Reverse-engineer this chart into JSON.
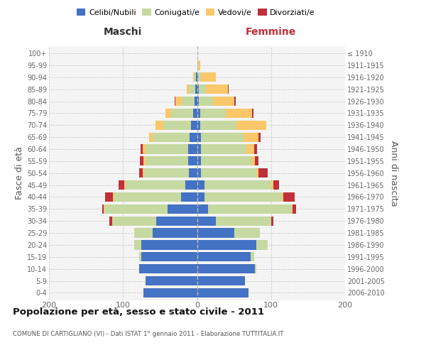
{
  "age_groups": [
    "0-4",
    "5-9",
    "10-14",
    "15-19",
    "20-24",
    "25-29",
    "30-34",
    "35-39",
    "40-44",
    "45-49",
    "50-54",
    "55-59",
    "60-64",
    "65-69",
    "70-74",
    "75-79",
    "80-84",
    "85-89",
    "90-94",
    "95-99",
    "100+"
  ],
  "birth_years": [
    "2006-2010",
    "2001-2005",
    "1996-2000",
    "1991-1995",
    "1986-1990",
    "1981-1985",
    "1976-1980",
    "1971-1975",
    "1966-1970",
    "1961-1965",
    "1956-1960",
    "1951-1955",
    "1946-1950",
    "1941-1945",
    "1936-1940",
    "1931-1935",
    "1926-1930",
    "1921-1925",
    "1916-1920",
    "1911-1915",
    "≤ 1910"
  ],
  "male_celibi": [
    72,
    70,
    78,
    75,
    75,
    60,
    55,
    40,
    22,
    16,
    11,
    12,
    12,
    10,
    8,
    5,
    3,
    2,
    1,
    0,
    0
  ],
  "male_coniugati": [
    0,
    0,
    0,
    3,
    10,
    25,
    60,
    85,
    90,
    80,
    60,
    58,
    58,
    50,
    38,
    30,
    18,
    9,
    3,
    0,
    0
  ],
  "male_vedovi": [
    0,
    0,
    0,
    0,
    0,
    0,
    0,
    1,
    2,
    2,
    2,
    2,
    3,
    5,
    10,
    8,
    8,
    3,
    1,
    0,
    0
  ],
  "male_divorziati": [
    0,
    0,
    0,
    0,
    0,
    0,
    3,
    2,
    10,
    8,
    5,
    5,
    3,
    0,
    0,
    0,
    1,
    0,
    0,
    0,
    0
  ],
  "fem_nubili": [
    70,
    65,
    78,
    72,
    80,
    50,
    25,
    15,
    10,
    10,
    5,
    5,
    5,
    5,
    4,
    4,
    2,
    2,
    1,
    0,
    0
  ],
  "fem_coniugate": [
    0,
    0,
    2,
    5,
    15,
    35,
    75,
    113,
    105,
    90,
    75,
    68,
    62,
    58,
    48,
    35,
    20,
    10,
    4,
    1,
    0
  ],
  "fem_vedove": [
    0,
    0,
    0,
    0,
    0,
    0,
    0,
    1,
    2,
    3,
    3,
    5,
    10,
    20,
    42,
    35,
    28,
    30,
    20,
    3,
    0
  ],
  "fem_divorziate": [
    0,
    0,
    0,
    0,
    0,
    0,
    3,
    5,
    15,
    8,
    12,
    5,
    4,
    3,
    0,
    2,
    2,
    1,
    0,
    0,
    0
  ],
  "color_celibi": "#4472C4",
  "color_coniugati": "#C5D9A0",
  "color_vedovi": "#FAC86A",
  "color_divorziati": "#C0303A",
  "xlim": 200,
  "bg_color": "#f4f4f4",
  "grid_color": "#cccccc",
  "title": "Popolazione per età, sesso e stato civile - 2011",
  "subtitle": "COMUNE DI CARTIGLIANO (VI) - Dati ISTAT 1° gennaio 2011 - Elaborazione TUTTITALIA.IT",
  "legend_labels": [
    "Celibi/Nubili",
    "Coniugati/e",
    "Vedovi/e",
    "Divorziati/e"
  ],
  "label_maschi": "Maschi",
  "label_femmine": "Femmine",
  "label_fasce": "Fasce di età",
  "label_anni": "Anni di nascita"
}
